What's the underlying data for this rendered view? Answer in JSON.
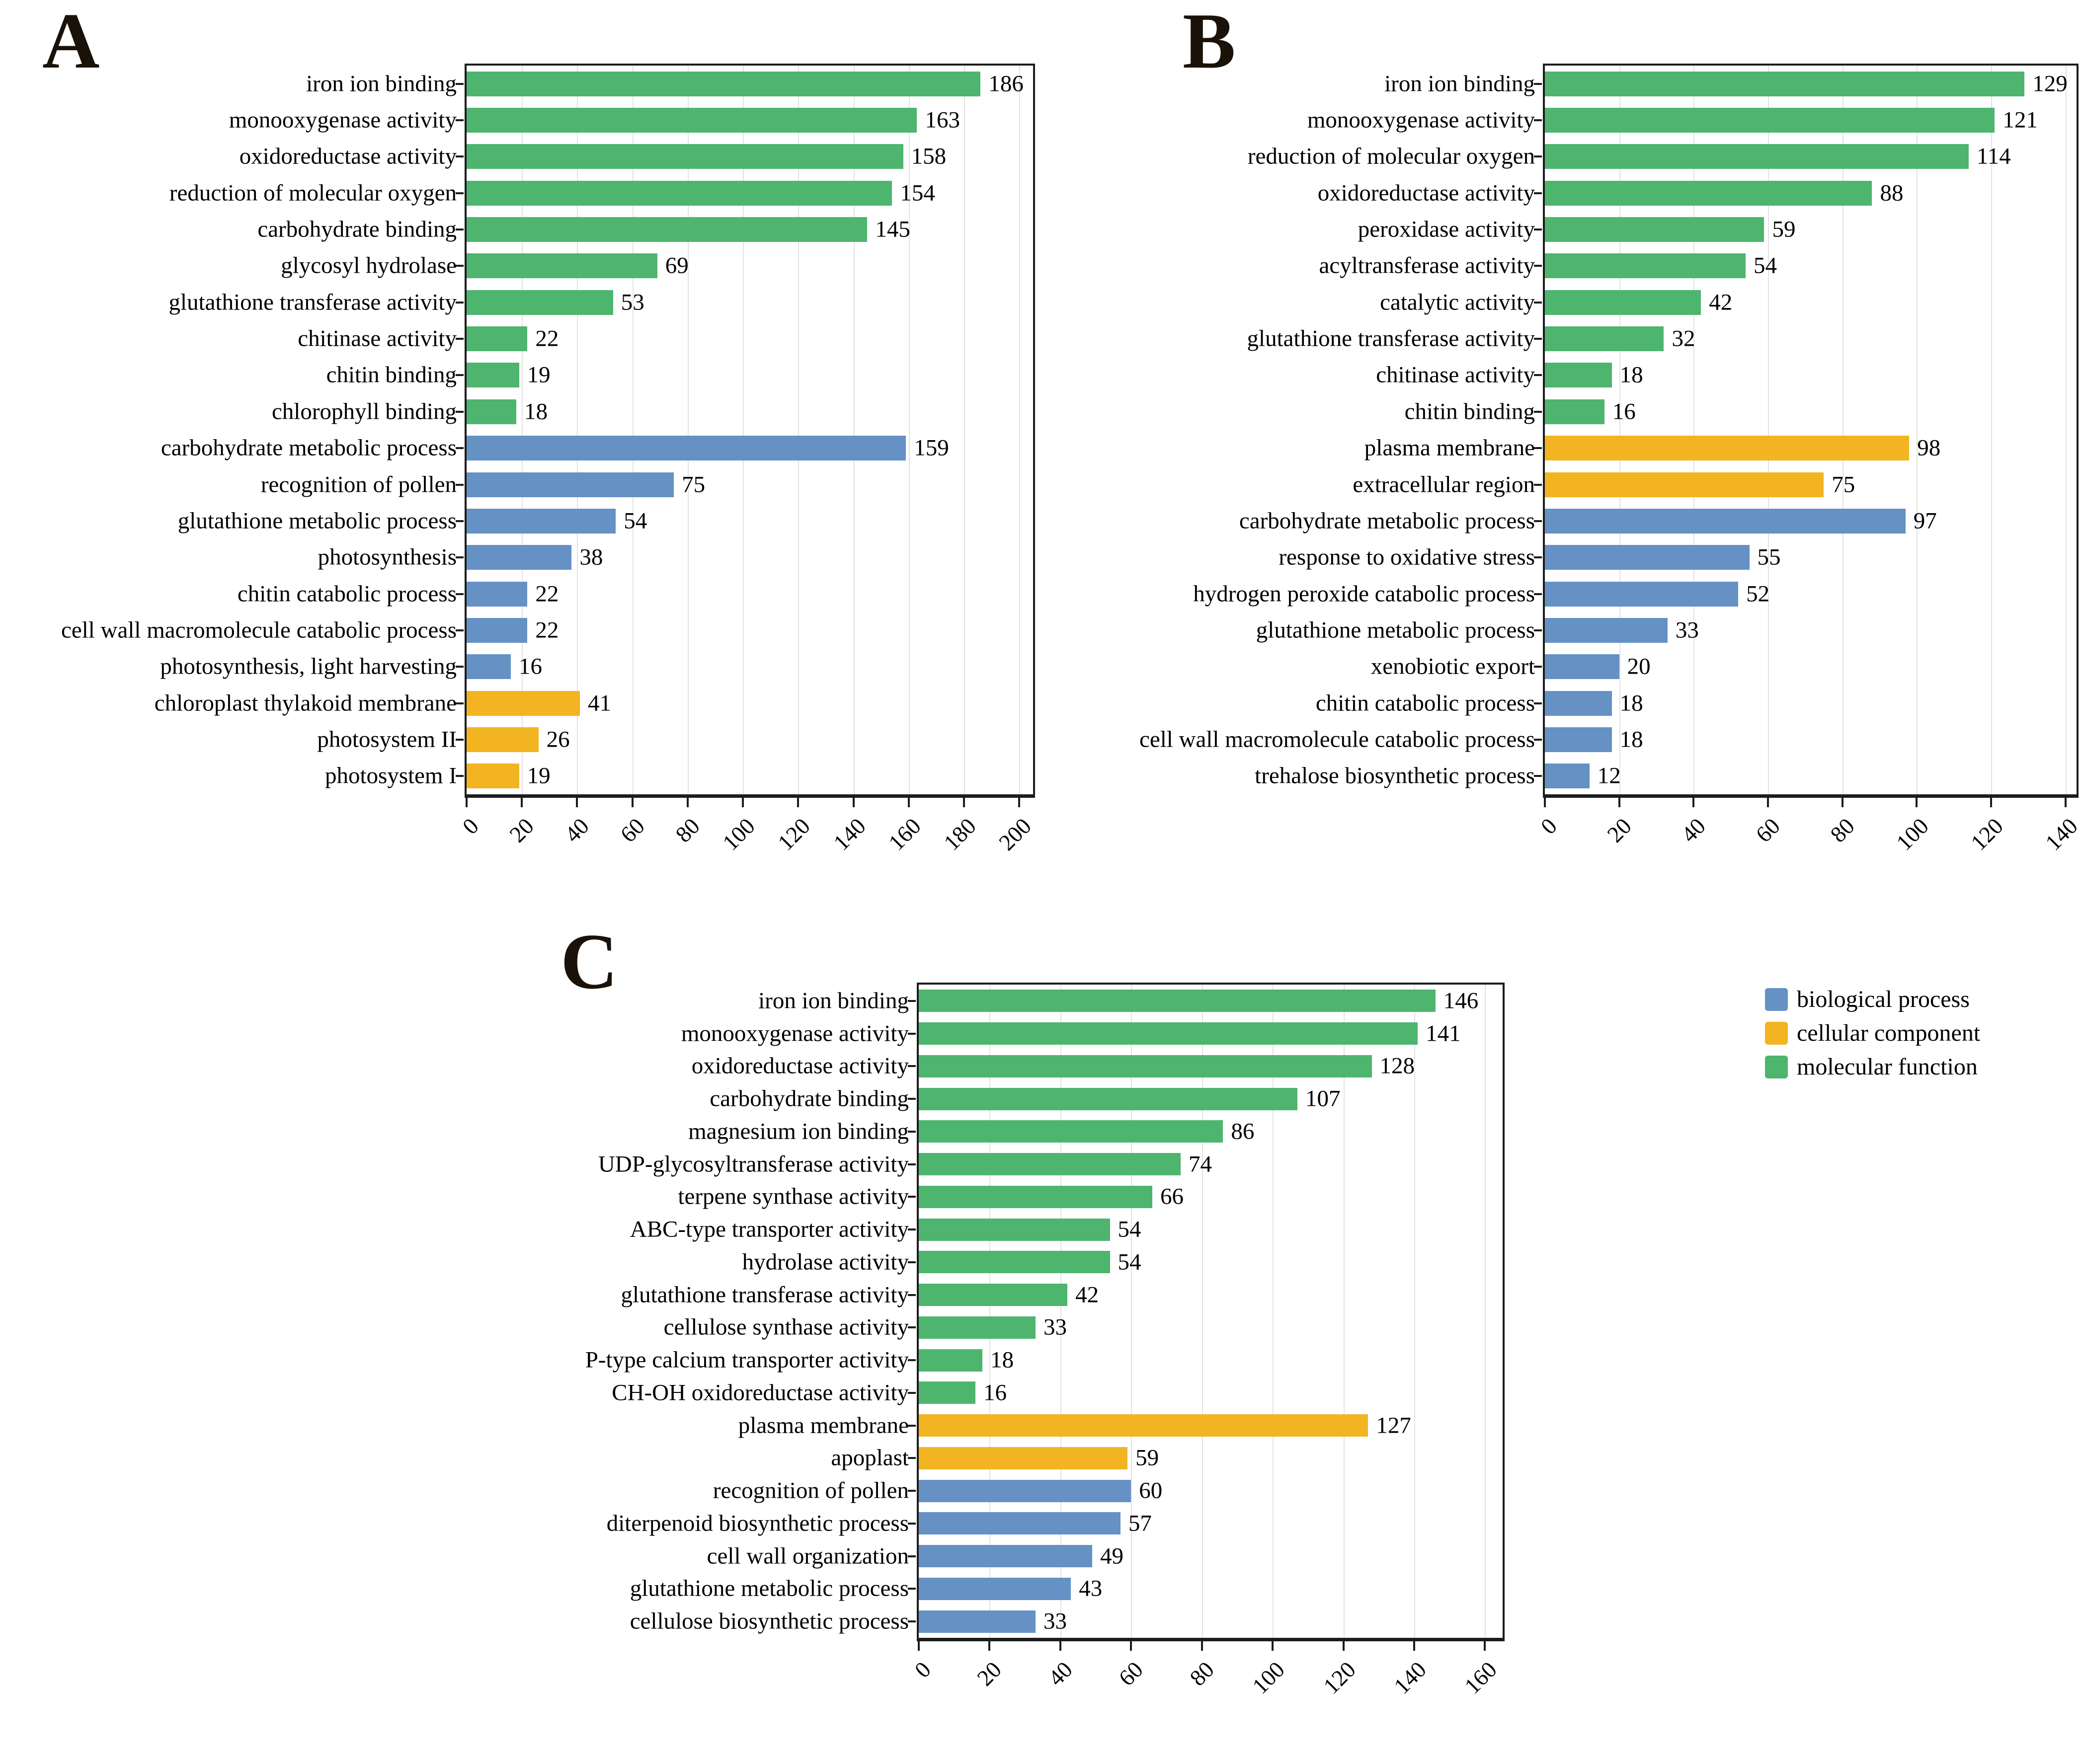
{
  "panels": [
    {
      "label": "A"
    },
    {
      "label": "B"
    },
    {
      "label": "C"
    }
  ],
  "legend": {
    "items": [
      {
        "label": "biological process",
        "color": "#6591c5"
      },
      {
        "label": "cellular component",
        "color": "#f2b420"
      },
      {
        "label": "molecular function",
        "color": "#4db56e"
      }
    ]
  },
  "colors": {
    "biological process": "#6591c5",
    "cellular component": "#f2b420",
    "molecular function": "#4db56e",
    "grid": "#e2e2e2",
    "frame": "#1c1c1c"
  },
  "chart_data": [
    {
      "type": "bar",
      "panel": "A",
      "orientation": "horizontal",
      "grid": "vertical-light",
      "xticks": [
        0,
        20,
        40,
        60,
        80,
        100,
        120,
        140,
        160,
        180,
        200
      ],
      "xlim": [
        0,
        205
      ],
      "rows": [
        {
          "label": "iron ion binding",
          "value": 186,
          "group": "molecular function"
        },
        {
          "label": "monooxygenase activity",
          "value": 163,
          "group": "molecular function"
        },
        {
          "label": "oxidoreductase activity",
          "value": 158,
          "group": "molecular function"
        },
        {
          "label": "reduction of molecular oxygen",
          "value": 154,
          "group": "molecular function"
        },
        {
          "label": "carbohydrate binding",
          "value": 145,
          "group": "molecular function"
        },
        {
          "label": "glycosyl hydrolase",
          "value": 69,
          "group": "molecular function"
        },
        {
          "label": "glutathione transferase activity",
          "value": 53,
          "group": "molecular function"
        },
        {
          "label": "chitinase activity",
          "value": 22,
          "group": "molecular function"
        },
        {
          "label": "chitin binding",
          "value": 19,
          "group": "molecular function"
        },
        {
          "label": "chlorophyll binding",
          "value": 18,
          "group": "molecular function"
        },
        {
          "label": "carbohydrate metabolic process",
          "value": 159,
          "group": "biological process"
        },
        {
          "label": "recognition of pollen",
          "value": 75,
          "group": "biological process"
        },
        {
          "label": "glutathione metabolic process",
          "value": 54,
          "group": "biological process"
        },
        {
          "label": "photosynthesis",
          "value": 38,
          "group": "biological process"
        },
        {
          "label": "chitin catabolic process",
          "value": 22,
          "group": "biological process"
        },
        {
          "label": "cell wall macromolecule catabolic process",
          "value": 22,
          "group": "biological process"
        },
        {
          "label": "photosynthesis, light harvesting",
          "value": 16,
          "group": "biological process"
        },
        {
          "label": "chloroplast thylakoid membrane",
          "value": 41,
          "group": "cellular component"
        },
        {
          "label": "photosystem II",
          "value": 26,
          "group": "cellular component"
        },
        {
          "label": "photosystem I",
          "value": 19,
          "group": "cellular component"
        }
      ]
    },
    {
      "type": "bar",
      "panel": "B",
      "orientation": "horizontal",
      "grid": "vertical-light",
      "xticks": [
        0,
        20,
        40,
        60,
        80,
        100,
        120,
        140
      ],
      "xlim": [
        0,
        143
      ],
      "rows": [
        {
          "label": "iron ion binding",
          "value": 129,
          "group": "molecular function"
        },
        {
          "label": "monooxygenase activity",
          "value": 121,
          "group": "molecular function"
        },
        {
          "label": "reduction of molecular oxygen",
          "value": 114,
          "group": "molecular function"
        },
        {
          "label": "oxidoreductase activity",
          "value": 88,
          "group": "molecular function"
        },
        {
          "label": "peroxidase activity",
          "value": 59,
          "group": "molecular function"
        },
        {
          "label": "acyltransferase activity",
          "value": 54,
          "group": "molecular function"
        },
        {
          "label": "catalytic activity",
          "value": 42,
          "group": "molecular function"
        },
        {
          "label": "glutathione transferase activity",
          "value": 32,
          "group": "molecular function"
        },
        {
          "label": "chitinase activity",
          "value": 18,
          "group": "molecular function"
        },
        {
          "label": "chitin binding",
          "value": 16,
          "group": "molecular function"
        },
        {
          "label": "plasma membrane",
          "value": 98,
          "group": "cellular component"
        },
        {
          "label": "extracellular region",
          "value": 75,
          "group": "cellular component"
        },
        {
          "label": "carbohydrate metabolic process",
          "value": 97,
          "group": "biological process"
        },
        {
          "label": "response to oxidative stress",
          "value": 55,
          "group": "biological process"
        },
        {
          "label": "hydrogen peroxide catabolic process",
          "value": 52,
          "group": "biological process"
        },
        {
          "label": "glutathione metabolic process",
          "value": 33,
          "group": "biological process"
        },
        {
          "label": "xenobiotic export",
          "value": 20,
          "group": "biological process"
        },
        {
          "label": "chitin catabolic process",
          "value": 18,
          "group": "biological process"
        },
        {
          "label": "cell wall macromolecule catabolic process",
          "value": 18,
          "group": "biological process"
        },
        {
          "label": "trehalose biosynthetic process",
          "value": 12,
          "group": "biological process"
        }
      ]
    },
    {
      "type": "bar",
      "panel": "C",
      "orientation": "horizontal",
      "grid": "vertical-light",
      "xticks": [
        0,
        20,
        40,
        60,
        80,
        100,
        120,
        140,
        160
      ],
      "xlim": [
        0,
        165
      ],
      "rows": [
        {
          "label": "iron ion binding",
          "value": 146,
          "group": "molecular function"
        },
        {
          "label": "monooxygenase activity",
          "value": 141,
          "group": "molecular function"
        },
        {
          "label": "oxidoreductase activity",
          "value": 128,
          "group": "molecular function"
        },
        {
          "label": "carbohydrate binding",
          "value": 107,
          "group": "molecular function"
        },
        {
          "label": "magnesium ion binding",
          "value": 86,
          "group": "molecular function"
        },
        {
          "label": "UDP-glycosyltransferase activity",
          "value": 74,
          "group": "molecular function"
        },
        {
          "label": "terpene synthase activity",
          "value": 66,
          "group": "molecular function"
        },
        {
          "label": "ABC-type transporter activity",
          "value": 54,
          "group": "molecular function"
        },
        {
          "label": "hydrolase activity",
          "value": 54,
          "group": "molecular function"
        },
        {
          "label": "glutathione transferase activity",
          "value": 42,
          "group": "molecular function"
        },
        {
          "label": "cellulose synthase activity",
          "value": 33,
          "group": "molecular function"
        },
        {
          "label": "P-type calcium transporter activity",
          "value": 18,
          "group": "molecular function"
        },
        {
          "label": "CH-OH oxidoreductase activity",
          "value": 16,
          "group": "molecular function"
        },
        {
          "label": "plasma membrane",
          "value": 127,
          "group": "cellular component"
        },
        {
          "label": "apoplast",
          "value": 59,
          "group": "cellular component"
        },
        {
          "label": "recognition of pollen",
          "value": 60,
          "group": "biological process"
        },
        {
          "label": "diterpenoid biosynthetic process",
          "value": 57,
          "group": "biological process"
        },
        {
          "label": "cell wall organization",
          "value": 49,
          "group": "biological process"
        },
        {
          "label": "glutathione metabolic process",
          "value": 43,
          "group": "biological process"
        },
        {
          "label": "cellulose biosynthetic process",
          "value": 33,
          "group": "biological process"
        }
      ]
    }
  ]
}
